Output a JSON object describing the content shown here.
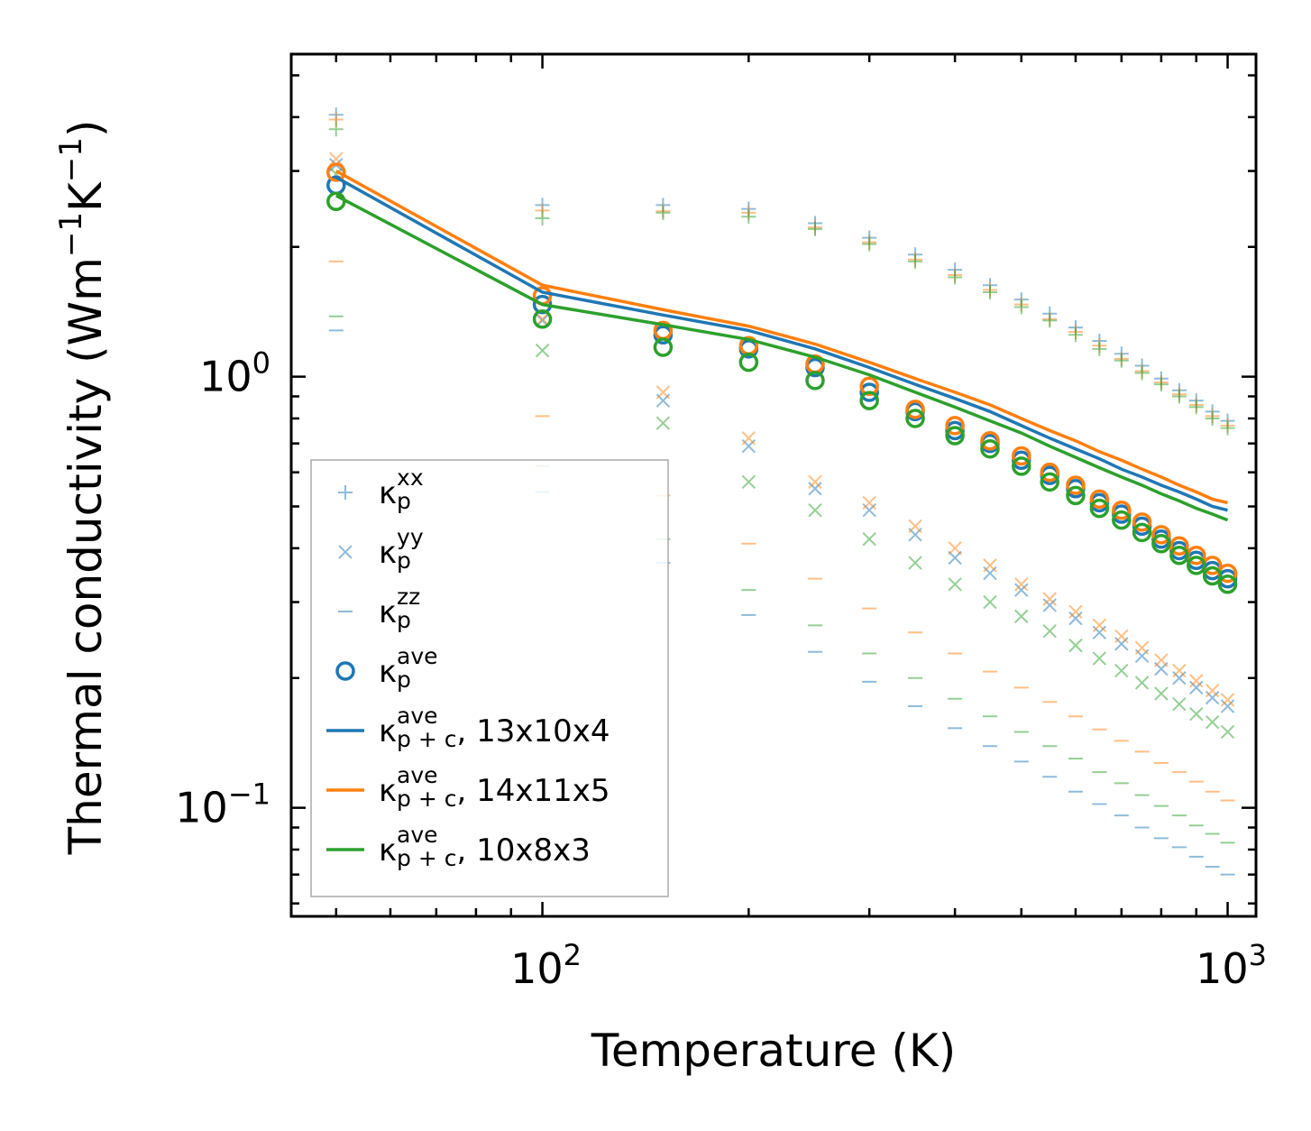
{
  "chart_data": {
    "type": "scatter",
    "title": "",
    "xlabel": "Temperature (K)",
    "ylabel": "Thermal conductivity (Wm",
    "ylabel_unit_parts": [
      "−1",
      "K",
      "−1",
      ")"
    ],
    "xscale": "log",
    "yscale": "log",
    "xlim": [
      43,
      1100
    ],
    "ylim": [
      0.056,
      5.6
    ],
    "grid": false,
    "legend_position": "lower-left",
    "x_ticks": [
      {
        "base": "10",
        "exp": "2",
        "value": 100
      },
      {
        "base": "10",
        "exp": "3",
        "value": 1000
      }
    ],
    "y_ticks": [
      {
        "base": "10",
        "exp": "−1",
        "value": 0.1
      },
      {
        "base": "10",
        "exp": "0",
        "value": 1.0
      }
    ],
    "colors": {
      "blue": "#1f77b4",
      "orange": "#ff7f0e",
      "green": "#2ca02c"
    },
    "x": [
      50,
      100,
      150,
      200,
      250,
      300,
      350,
      400,
      450,
      500,
      550,
      600,
      650,
      700,
      750,
      800,
      850,
      900,
      950,
      1000
    ],
    "series": [
      {
        "name": "13x10x4",
        "color": "#1f77b4",
        "marker": "plus",
        "component": "xx",
        "values": [
          4.05,
          2.5,
          2.5,
          2.45,
          2.27,
          2.1,
          1.92,
          1.77,
          1.63,
          1.51,
          1.4,
          1.3,
          1.21,
          1.13,
          1.06,
          0.99,
          0.93,
          0.88,
          0.83,
          0.79
        ]
      },
      {
        "name": "14x11x5",
        "color": "#ff7f0e",
        "marker": "plus",
        "component": "xx",
        "values": [
          3.95,
          2.43,
          2.42,
          2.4,
          2.22,
          2.05,
          1.87,
          1.72,
          1.59,
          1.47,
          1.36,
          1.27,
          1.18,
          1.1,
          1.03,
          0.97,
          0.91,
          0.86,
          0.81,
          0.77
        ]
      },
      {
        "name": "10x8x3",
        "color": "#2ca02c",
        "marker": "plus",
        "component": "xx",
        "values": [
          3.75,
          2.33,
          2.4,
          2.35,
          2.2,
          2.03,
          1.85,
          1.7,
          1.57,
          1.45,
          1.35,
          1.25,
          1.16,
          1.09,
          1.02,
          0.96,
          0.9,
          0.85,
          0.8,
          0.76
        ]
      },
      {
        "name": "13x10x4",
        "color": "#1f77b4",
        "marker": "x",
        "component": "yy",
        "values": [
          3.1,
          1.35,
          0.88,
          0.69,
          0.55,
          0.49,
          0.43,
          0.38,
          0.35,
          0.32,
          0.295,
          0.275,
          0.255,
          0.24,
          0.225,
          0.21,
          0.2,
          0.19,
          0.18,
          0.172
        ]
      },
      {
        "name": "14x11x5",
        "color": "#ff7f0e",
        "marker": "x",
        "component": "yy",
        "values": [
          3.2,
          1.36,
          0.92,
          0.72,
          0.57,
          0.51,
          0.45,
          0.4,
          0.365,
          0.33,
          0.305,
          0.285,
          0.265,
          0.25,
          0.235,
          0.22,
          0.208,
          0.197,
          0.187,
          0.178
        ]
      },
      {
        "name": "10x8x3",
        "color": "#2ca02c",
        "marker": "x",
        "component": "yy",
        "values": [
          2.95,
          1.15,
          0.78,
          0.57,
          0.49,
          0.42,
          0.37,
          0.33,
          0.3,
          0.278,
          0.257,
          0.238,
          0.222,
          0.208,
          0.195,
          0.184,
          0.174,
          0.165,
          0.158,
          0.15
        ]
      },
      {
        "name": "13x10x4",
        "color": "#1f77b4",
        "marker": "dash",
        "component": "zz",
        "values": [
          1.28,
          0.54,
          0.37,
          0.28,
          0.23,
          0.196,
          0.172,
          0.153,
          0.139,
          0.128,
          0.118,
          0.109,
          0.102,
          0.096,
          0.09,
          0.085,
          0.081,
          0.077,
          0.073,
          0.07
        ]
      },
      {
        "name": "14x11x5",
        "color": "#ff7f0e",
        "marker": "dash",
        "component": "zz",
        "values": [
          1.85,
          0.81,
          0.53,
          0.41,
          0.34,
          0.29,
          0.255,
          0.228,
          0.207,
          0.19,
          0.176,
          0.163,
          0.152,
          0.143,
          0.135,
          0.127,
          0.121,
          0.115,
          0.109,
          0.104
        ]
      },
      {
        "name": "10x8x3",
        "color": "#2ca02c",
        "marker": "dash",
        "component": "zz",
        "values": [
          1.38,
          0.62,
          0.42,
          0.32,
          0.265,
          0.228,
          0.2,
          0.179,
          0.163,
          0.15,
          0.139,
          0.13,
          0.121,
          0.114,
          0.107,
          0.101,
          0.096,
          0.091,
          0.087,
          0.083
        ]
      },
      {
        "name": "13x10x4",
        "color": "#1f77b4",
        "marker": "circle",
        "component": "ave",
        "values": [
          2.78,
          1.47,
          1.25,
          1.16,
          1.05,
          0.92,
          0.83,
          0.75,
          0.7,
          0.64,
          0.59,
          0.55,
          0.51,
          0.48,
          0.45,
          0.42,
          0.395,
          0.375,
          0.355,
          0.34
        ]
      },
      {
        "name": "14x11x5",
        "color": "#ff7f0e",
        "marker": "circle",
        "component": "ave",
        "values": [
          2.98,
          1.54,
          1.28,
          1.18,
          1.07,
          0.95,
          0.84,
          0.77,
          0.71,
          0.655,
          0.6,
          0.56,
          0.52,
          0.49,
          0.46,
          0.43,
          0.405,
          0.385,
          0.365,
          0.35
        ]
      },
      {
        "name": "10x8x3",
        "color": "#2ca02c",
        "marker": "circle",
        "component": "ave",
        "values": [
          2.55,
          1.36,
          1.17,
          1.08,
          0.98,
          0.88,
          0.8,
          0.73,
          0.68,
          0.62,
          0.57,
          0.53,
          0.495,
          0.465,
          0.435,
          0.41,
          0.385,
          0.365,
          0.345,
          0.33
        ]
      },
      {
        "name": "13x10x4",
        "color": "#1f77b4",
        "marker": "line",
        "component": "p+c",
        "values": [
          2.9,
          1.57,
          1.39,
          1.28,
          1.16,
          1.05,
          0.96,
          0.89,
          0.83,
          0.77,
          0.72,
          0.68,
          0.645,
          0.61,
          0.585,
          0.56,
          0.54,
          0.52,
          0.5,
          0.49
        ]
      },
      {
        "name": "14x11x5",
        "color": "#ff7f0e",
        "marker": "line",
        "component": "p+c",
        "values": [
          3.0,
          1.63,
          1.43,
          1.31,
          1.19,
          1.08,
          0.99,
          0.92,
          0.86,
          0.8,
          0.75,
          0.71,
          0.67,
          0.64,
          0.61,
          0.585,
          0.56,
          0.54,
          0.52,
          0.51
        ]
      },
      {
        "name": "10x8x3",
        "color": "#2ca02c",
        "marker": "line",
        "component": "p+c",
        "values": [
          2.63,
          1.47,
          1.32,
          1.22,
          1.11,
          1.01,
          0.92,
          0.85,
          0.79,
          0.74,
          0.69,
          0.65,
          0.615,
          0.585,
          0.56,
          0.535,
          0.515,
          0.495,
          0.48,
          0.465
        ]
      }
    ],
    "legend": [
      {
        "marker": "plus",
        "color": "#1f77b4",
        "symbol": "κ",
        "sub": "p",
        "sup": "xx",
        "suffix": ""
      },
      {
        "marker": "x",
        "color": "#1f77b4",
        "symbol": "κ",
        "sub": "p",
        "sup": "yy",
        "suffix": ""
      },
      {
        "marker": "dash",
        "color": "#1f77b4",
        "symbol": "κ",
        "sub": "p",
        "sup": "zz",
        "suffix": ""
      },
      {
        "marker": "circle",
        "color": "#1f77b4",
        "symbol": "κ",
        "sub": "p",
        "sup": "ave",
        "suffix": ""
      },
      {
        "marker": "line",
        "color": "#1f77b4",
        "symbol": "κ",
        "sub": "p + c",
        "sup": "ave",
        "suffix": ", 13x10x4"
      },
      {
        "marker": "line",
        "color": "#ff7f0e",
        "symbol": "κ",
        "sub": "p + c",
        "sup": "ave",
        "suffix": ", 14x11x5"
      },
      {
        "marker": "line",
        "color": "#2ca02c",
        "symbol": "κ",
        "sub": "p + c",
        "sup": "ave",
        "suffix": ", 10x8x3"
      }
    ]
  }
}
